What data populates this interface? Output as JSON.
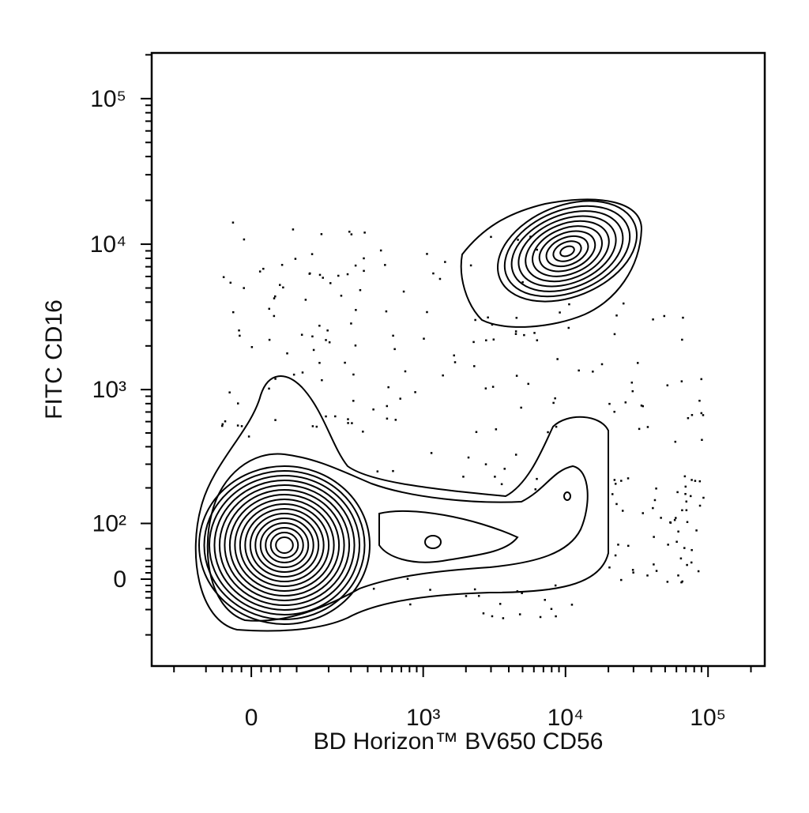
{
  "chart_data": {
    "type": "contour",
    "x_label": "BD Horizon™ BV650 CD56",
    "y_label": "FITC CD16",
    "xscale": "biexponential",
    "yscale": "biexponential",
    "xlim": [
      -300,
      250000
    ],
    "ylim": [
      -185,
      206000
    ],
    "xticks": [
      0,
      {
        "value": 1000,
        "label": "10³"
      },
      {
        "value": 10000,
        "label": "10⁴"
      },
      {
        "value": 100000,
        "label": "10⁵"
      }
    ],
    "yticks": [
      0,
      {
        "value": 100,
        "label": "10²"
      },
      {
        "value": 1000,
        "label": "10³"
      },
      {
        "value": 10000,
        "label": "10⁴"
      },
      {
        "value": 100000,
        "label": "10⁵"
      }
    ],
    "xminorticks": [
      -200,
      -100,
      -60,
      -40,
      -20,
      20,
      40,
      60,
      100,
      200,
      300,
      400,
      500,
      600,
      700,
      800,
      900,
      2000,
      3000,
      4000,
      5000,
      6000,
      7000,
      8000,
      9000,
      20000,
      30000,
      40000,
      50000,
      60000,
      70000,
      80000,
      90000,
      200000
    ],
    "yminorticks": [
      -100,
      -50,
      -30,
      -20,
      -10,
      10,
      20,
      30,
      50,
      200,
      300,
      400,
      500,
      600,
      700,
      800,
      900,
      2000,
      3000,
      4000,
      5000,
      6000,
      7000,
      8000,
      9000,
      20000,
      30000,
      40000,
      50000,
      60000,
      70000,
      80000,
      90000,
      200000
    ],
    "color": "#000000"
  }
}
